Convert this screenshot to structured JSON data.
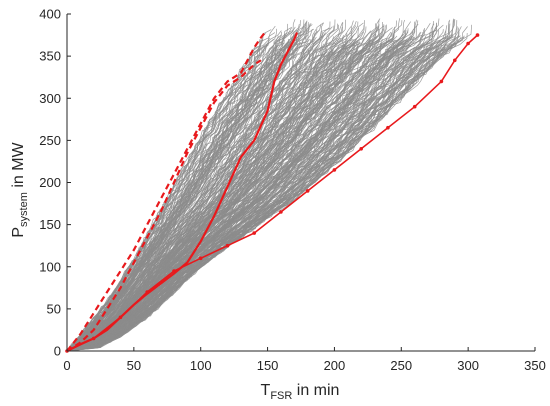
{
  "chart_data": {
    "type": "line",
    "title": "",
    "xlabel": {
      "main": "T",
      "sub": "FSR",
      "suffix": " in min"
    },
    "ylabel": {
      "main": "P",
      "sub": "system",
      "suffix": " in MW"
    },
    "xlim": [
      0,
      350
    ],
    "ylim": [
      0,
      400
    ],
    "x_ticks": [
      0,
      50,
      100,
      150,
      200,
      250,
      300,
      350
    ],
    "y_ticks": [
      0,
      50,
      100,
      150,
      200,
      250,
      300,
      350,
      400
    ],
    "x_tick_labels": [
      "0",
      "50",
      "100",
      "150",
      "200",
      "250",
      "300",
      "350"
    ],
    "y_tick_labels": [
      "0",
      "50",
      "100",
      "150",
      "200",
      "250",
      "300",
      "350",
      "400"
    ],
    "grid": false,
    "legend": "none",
    "colors": {
      "ensemble": "#8c8c8c",
      "highlight": "#e8191c",
      "axes": "#262626"
    },
    "ensemble": {
      "description_count": 300,
      "envelope_lower": [
        [
          0,
          0
        ],
        [
          20,
          2
        ],
        [
          40,
          18
        ],
        [
          60,
          40
        ],
        [
          80,
          70
        ],
        [
          100,
          100
        ],
        [
          130,
          135
        ],
        [
          170,
          180
        ],
        [
          210,
          235
        ],
        [
          250,
          300
        ],
        [
          280,
          350
        ],
        [
          300,
          375
        ]
      ],
      "envelope_upper": [
        [
          0,
          0
        ],
        [
          10,
          20
        ],
        [
          30,
          60
        ],
        [
          50,
          110
        ],
        [
          70,
          170
        ],
        [
          90,
          230
        ],
        [
          110,
          285
        ],
        [
          130,
          335
        ],
        [
          145,
          375
        ],
        [
          150,
          385
        ]
      ],
      "max_power": 395
    },
    "series": [
      {
        "style": "solid",
        "x": [
          0,
          10,
          20,
          30,
          40,
          50,
          60,
          70,
          80,
          90,
          100,
          110,
          120,
          130,
          140,
          150,
          155,
          160,
          165,
          170,
          172
        ],
        "y": [
          0,
          8,
          15,
          25,
          40,
          55,
          68,
          80,
          92,
          105,
          130,
          160,
          195,
          230,
          250,
          285,
          320,
          340,
          355,
          370,
          378
        ]
      },
      {
        "style": "dashed",
        "x": [
          0,
          10,
          20,
          30,
          40,
          50,
          60,
          70,
          80,
          90,
          100,
          110,
          120,
          130,
          135,
          140,
          145,
          148
        ],
        "y": [
          0,
          20,
          45,
          70,
          95,
          120,
          150,
          180,
          210,
          240,
          270,
          300,
          320,
          330,
          345,
          360,
          372,
          378
        ]
      },
      {
        "style": "dashed",
        "x": [
          0,
          10,
          20,
          30,
          40,
          50,
          60,
          70,
          80,
          90,
          100,
          110,
          120,
          130,
          140,
          145
        ],
        "y": [
          0,
          10,
          25,
          50,
          75,
          105,
          135,
          165,
          200,
          235,
          265,
          295,
          315,
          325,
          340,
          345
        ]
      },
      {
        "style": "marker",
        "x": [
          0,
          20,
          40,
          60,
          80,
          100,
          120,
          140,
          160,
          180,
          200,
          220,
          240,
          260,
          280,
          290,
          300,
          307
        ],
        "y": [
          0,
          15,
          40,
          70,
          95,
          110,
          125,
          140,
          165,
          190,
          215,
          240,
          265,
          290,
          320,
          345,
          365,
          375
        ]
      }
    ]
  }
}
